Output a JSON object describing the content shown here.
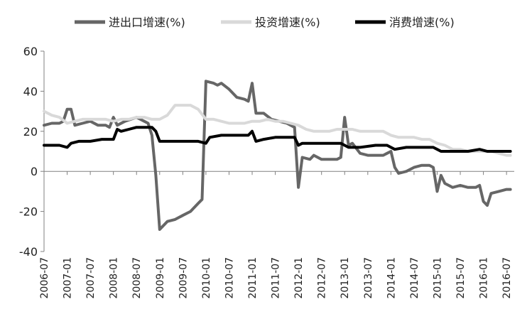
{
  "chart_data": {
    "type": "line",
    "title": "",
    "xlabel": "",
    "ylabel": "",
    "ylim": [
      -40,
      60
    ],
    "yticks": [
      "60",
      "40",
      "20",
      "0",
      "-20",
      "-40"
    ],
    "x_tick_labels": [
      "2006-07",
      "2007-01",
      "2007-07",
      "2008-01",
      "2008-07",
      "2009-01",
      "2009-07",
      "2010-01",
      "2010-07",
      "2011-01",
      "2011-07",
      "2012-01",
      "2012-07",
      "2013-01",
      "2013-07",
      "2014-01",
      "2014-07",
      "2015-01",
      "2015-07",
      "2016-01",
      "2016-07"
    ],
    "grid": false,
    "legend_position": "top",
    "series": [
      {
        "name": "进出口增速(%)",
        "color": "#666666",
        "points": [
          [
            "2006-07",
            23
          ],
          [
            "2006-09",
            24
          ],
          [
            "2006-11",
            24
          ],
          [
            "2006-12",
            25
          ],
          [
            "2007-01",
            31
          ],
          [
            "2007-02",
            31
          ],
          [
            "2007-03",
            23
          ],
          [
            "2007-05",
            24
          ],
          [
            "2007-07",
            25
          ],
          [
            "2007-09",
            23
          ],
          [
            "2007-11",
            23
          ],
          [
            "2007-12",
            22
          ],
          [
            "2008-01",
            27
          ],
          [
            "2008-02",
            23
          ],
          [
            "2008-04",
            25
          ],
          [
            "2008-07",
            27
          ],
          [
            "2008-09",
            25
          ],
          [
            "2008-10",
            24
          ],
          [
            "2008-11",
            18
          ],
          [
            "2008-12",
            -2
          ],
          [
            "2009-01",
            -29
          ],
          [
            "2009-03",
            -25
          ],
          [
            "2009-05",
            -24
          ],
          [
            "2009-07",
            -22
          ],
          [
            "2009-09",
            -20
          ],
          [
            "2009-11",
            -16
          ],
          [
            "2009-12",
            -14
          ],
          [
            "2010-01",
            45
          ],
          [
            "2010-03",
            44
          ],
          [
            "2010-04",
            43
          ],
          [
            "2010-05",
            44
          ],
          [
            "2010-07",
            41
          ],
          [
            "2010-09",
            37
          ],
          [
            "2010-11",
            36
          ],
          [
            "2010-12",
            35
          ],
          [
            "2011-01",
            44
          ],
          [
            "2011-02",
            29
          ],
          [
            "2011-04",
            29
          ],
          [
            "2011-06",
            26
          ],
          [
            "2011-08",
            25
          ],
          [
            "2011-10",
            24
          ],
          [
            "2011-12",
            22
          ],
          [
            "2012-01",
            -8
          ],
          [
            "2012-02",
            7
          ],
          [
            "2012-04",
            6
          ],
          [
            "2012-05",
            8
          ],
          [
            "2012-07",
            6
          ],
          [
            "2012-09",
            6
          ],
          [
            "2012-11",
            6
          ],
          [
            "2012-12",
            7
          ],
          [
            "2013-01",
            27
          ],
          [
            "2013-02",
            13
          ],
          [
            "2013-03",
            14
          ],
          [
            "2013-05",
            9
          ],
          [
            "2013-07",
            8
          ],
          [
            "2013-09",
            8
          ],
          [
            "2013-11",
            8
          ],
          [
            "2013-12",
            9
          ],
          [
            "2014-01",
            10
          ],
          [
            "2014-02",
            2
          ],
          [
            "2014-03",
            -1
          ],
          [
            "2014-05",
            0
          ],
          [
            "2014-07",
            2
          ],
          [
            "2014-09",
            3
          ],
          [
            "2014-11",
            3
          ],
          [
            "2014-12",
            2
          ],
          [
            "2015-01",
            -10
          ],
          [
            "2015-02",
            -2
          ],
          [
            "2015-03",
            -6
          ],
          [
            "2015-05",
            -8
          ],
          [
            "2015-07",
            -7
          ],
          [
            "2015-09",
            -8
          ],
          [
            "2015-11",
            -8
          ],
          [
            "2015-12",
            -7
          ],
          [
            "2016-01",
            -15
          ],
          [
            "2016-02",
            -17
          ],
          [
            "2016-03",
            -11
          ],
          [
            "2016-05",
            -10
          ],
          [
            "2016-07",
            -9
          ],
          [
            "2016-08",
            -9
          ]
        ]
      },
      {
        "name": "投资增速(%)",
        "color": "#d9d9d9",
        "points": [
          [
            "2006-07",
            30
          ],
          [
            "2006-09",
            28
          ],
          [
            "2006-11",
            27
          ],
          [
            "2007-01",
            24
          ],
          [
            "2007-03",
            25
          ],
          [
            "2007-05",
            26
          ],
          [
            "2007-07",
            26
          ],
          [
            "2007-09",
            26
          ],
          [
            "2007-11",
            26
          ],
          [
            "2008-01",
            25
          ],
          [
            "2008-03",
            26
          ],
          [
            "2008-05",
            26
          ],
          [
            "2008-07",
            27
          ],
          [
            "2008-09",
            27
          ],
          [
            "2008-11",
            26
          ],
          [
            "2009-01",
            26
          ],
          [
            "2009-03",
            28
          ],
          [
            "2009-05",
            33
          ],
          [
            "2009-07",
            33
          ],
          [
            "2009-09",
            33
          ],
          [
            "2009-11",
            31
          ],
          [
            "2010-01",
            26
          ],
          [
            "2010-03",
            26
          ],
          [
            "2010-05",
            25
          ],
          [
            "2010-07",
            24
          ],
          [
            "2010-09",
            24
          ],
          [
            "2010-11",
            24
          ],
          [
            "2011-01",
            25
          ],
          [
            "2011-03",
            25
          ],
          [
            "2011-05",
            26
          ],
          [
            "2011-07",
            25
          ],
          [
            "2011-09",
            25
          ],
          [
            "2011-11",
            24
          ],
          [
            "2012-01",
            23
          ],
          [
            "2012-03",
            21
          ],
          [
            "2012-05",
            20
          ],
          [
            "2012-07",
            20
          ],
          [
            "2012-09",
            20
          ],
          [
            "2012-11",
            21
          ],
          [
            "2013-01",
            21
          ],
          [
            "2013-03",
            21
          ],
          [
            "2013-05",
            20
          ],
          [
            "2013-07",
            20
          ],
          [
            "2013-09",
            20
          ],
          [
            "2013-11",
            20
          ],
          [
            "2014-01",
            18
          ],
          [
            "2014-03",
            17
          ],
          [
            "2014-05",
            17
          ],
          [
            "2014-07",
            17
          ],
          [
            "2014-09",
            16
          ],
          [
            "2014-11",
            16
          ],
          [
            "2015-01",
            14
          ],
          [
            "2015-03",
            13
          ],
          [
            "2015-05",
            11
          ],
          [
            "2015-07",
            11
          ],
          [
            "2015-09",
            10
          ],
          [
            "2015-11",
            10
          ],
          [
            "2016-01",
            10
          ],
          [
            "2016-03",
            10
          ],
          [
            "2016-05",
            9
          ],
          [
            "2016-07",
            8
          ],
          [
            "2016-08",
            8
          ]
        ]
      },
      {
        "name": "消费增速(%)",
        "color": "#000000",
        "points": [
          [
            "2006-07",
            13
          ],
          [
            "2006-09",
            13
          ],
          [
            "2006-11",
            13
          ],
          [
            "2007-01",
            12
          ],
          [
            "2007-02",
            14
          ],
          [
            "2007-04",
            15
          ],
          [
            "2007-07",
            15
          ],
          [
            "2007-10",
            16
          ],
          [
            "2008-01",
            16
          ],
          [
            "2008-02",
            21
          ],
          [
            "2008-03",
            20
          ],
          [
            "2008-05",
            21
          ],
          [
            "2008-07",
            22
          ],
          [
            "2008-09",
            22
          ],
          [
            "2008-11",
            22
          ],
          [
            "2008-12",
            20
          ],
          [
            "2009-01",
            15
          ],
          [
            "2009-03",
            15
          ],
          [
            "2009-07",
            15
          ],
          [
            "2009-11",
            15
          ],
          [
            "2010-01",
            14
          ],
          [
            "2010-02",
            17
          ],
          [
            "2010-05",
            18
          ],
          [
            "2010-09",
            18
          ],
          [
            "2010-12",
            18
          ],
          [
            "2011-01",
            20
          ],
          [
            "2011-02",
            15
          ],
          [
            "2011-04",
            16
          ],
          [
            "2011-07",
            17
          ],
          [
            "2011-10",
            17
          ],
          [
            "2011-12",
            17
          ],
          [
            "2012-01",
            13
          ],
          [
            "2012-02",
            14
          ],
          [
            "2012-05",
            14
          ],
          [
            "2012-09",
            14
          ],
          [
            "2012-12",
            14
          ],
          [
            "2013-01",
            13
          ],
          [
            "2013-02",
            12
          ],
          [
            "2013-05",
            12
          ],
          [
            "2013-09",
            13
          ],
          [
            "2013-12",
            13
          ],
          [
            "2014-01",
            12
          ],
          [
            "2014-02",
            11
          ],
          [
            "2014-05",
            12
          ],
          [
            "2014-09",
            12
          ],
          [
            "2014-12",
            12
          ],
          [
            "2015-01",
            11
          ],
          [
            "2015-02",
            10
          ],
          [
            "2015-05",
            10
          ],
          [
            "2015-09",
            10
          ],
          [
            "2015-12",
            11
          ],
          [
            "2016-02",
            10
          ],
          [
            "2016-05",
            10
          ],
          [
            "2016-08",
            10
          ]
        ]
      }
    ]
  }
}
